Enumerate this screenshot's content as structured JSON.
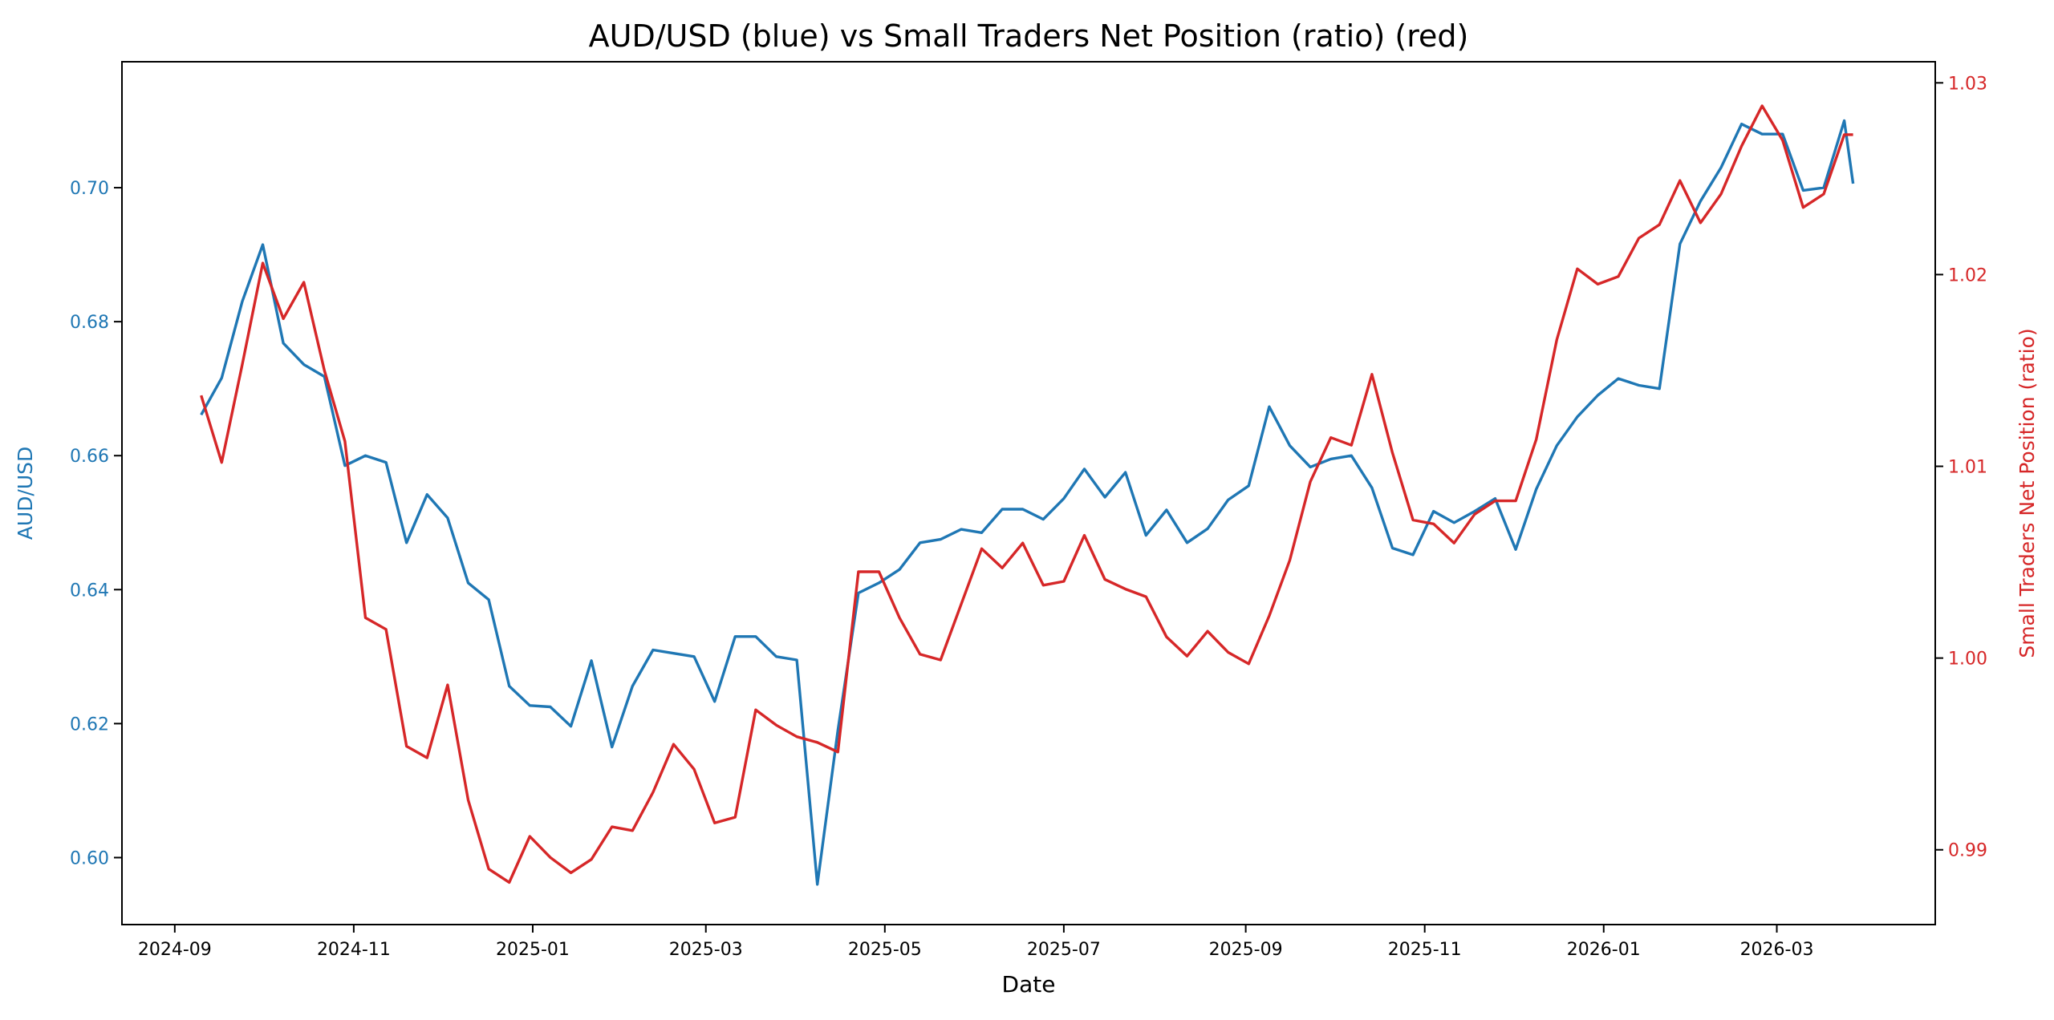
{
  "chart_data": {
    "type": "line",
    "title": "AUD/USD (blue) vs Small Traders Net Position (ratio) (red)",
    "xlabel": "Date",
    "ylabel_left": "AUD/USD",
    "ylabel_right": "Small Traders Net Position (ratio)",
    "xlim": [
      "2024-08-14",
      "2026-04-24"
    ],
    "ylim_left": [
      0.59,
      0.7188
    ],
    "ylim_right": [
      0.9861,
      1.0311
    ],
    "grid": false,
    "legend": "none",
    "x_ticks": [
      "2024-09",
      "2024-11",
      "2025-01",
      "2025-03",
      "2025-05",
      "2025-07",
      "2025-09",
      "2025-11",
      "2026-01",
      "2026-03"
    ],
    "y_ticks_left": [
      "0.60",
      "0.62",
      "0.64",
      "0.66",
      "0.68",
      "0.70"
    ],
    "y_ticks_right": [
      "0.99",
      "1.00",
      "1.01",
      "1.02",
      "1.03"
    ],
    "colors": {
      "left": "#1f77b4",
      "right": "#d62728"
    },
    "x": [
      "2024-09-10",
      "2024-09-17",
      "2024-09-24",
      "2024-10-01",
      "2024-10-08",
      "2024-10-15",
      "2024-10-22",
      "2024-10-29",
      "2024-11-05",
      "2024-11-12",
      "2024-11-19",
      "2024-11-26",
      "2024-12-03",
      "2024-12-10",
      "2024-12-17",
      "2024-12-24",
      "2024-12-31",
      "2025-01-07",
      "2025-01-14",
      "2025-01-21",
      "2025-01-28",
      "2025-02-04",
      "2025-02-11",
      "2025-02-18",
      "2025-02-25",
      "2025-03-04",
      "2025-03-11",
      "2025-03-18",
      "2025-03-25",
      "2025-04-01",
      "2025-04-08",
      "2025-04-15",
      "2025-04-22",
      "2025-04-29",
      "2025-05-06",
      "2025-05-13",
      "2025-05-20",
      "2025-05-27",
      "2025-06-03",
      "2025-06-10",
      "2025-06-17",
      "2025-06-24",
      "2025-07-01",
      "2025-07-08",
      "2025-07-15",
      "2025-07-22",
      "2025-07-29",
      "2025-08-05",
      "2025-08-12",
      "2025-08-19",
      "2025-08-26",
      "2025-09-02",
      "2025-09-09",
      "2025-09-16",
      "2025-09-23",
      "2025-09-30",
      "2025-10-07",
      "2025-10-14",
      "2025-10-21",
      "2025-10-28",
      "2025-11-04",
      "2025-11-11",
      "2025-11-18",
      "2025-11-25",
      "2025-12-02",
      "2025-12-09",
      "2025-12-16",
      "2025-12-23",
      "2025-12-30",
      "2026-01-06",
      "2026-01-13",
      "2026-01-20",
      "2026-01-27",
      "2026-02-03",
      "2026-02-10",
      "2026-02-17",
      "2026-02-24",
      "2026-03-03",
      "2026-03-10",
      "2026-03-17",
      "2026-03-24",
      "2026-03-27"
    ],
    "series": [
      {
        "axis": "left",
        "values": [
          0.6661,
          0.6716,
          0.683,
          0.6915,
          0.6768,
          0.6736,
          0.6718,
          0.6585,
          0.66,
          0.659,
          0.647,
          0.6542,
          0.6507,
          0.641,
          0.6385,
          0.6256,
          0.6227,
          0.6225,
          0.6196,
          0.6294,
          0.6165,
          0.6256,
          0.631,
          0.6305,
          0.63,
          0.6233,
          0.633,
          0.633,
          0.63,
          0.6295,
          0.596,
          0.619,
          0.6395,
          0.641,
          0.643,
          0.647,
          0.6475,
          0.649,
          0.6485,
          0.652,
          0.652,
          0.6505,
          0.6536,
          0.658,
          0.6538,
          0.6575,
          0.6481,
          0.6519,
          0.647,
          0.6491,
          0.6534,
          0.6555,
          0.6673,
          0.6615,
          0.6583,
          0.6595,
          0.66,
          0.6552,
          0.6462,
          0.6452,
          0.6517,
          0.65,
          0.6517,
          0.6536,
          0.646,
          0.655,
          0.6615,
          0.6658,
          0.669,
          0.6715,
          0.6705,
          0.67,
          0.6916,
          0.698,
          0.703,
          0.7095,
          0.708,
          0.708,
          0.6996,
          0.7,
          0.71,
          0.7006
        ]
      },
      {
        "axis": "right",
        "values": [
          1.0137,
          1.0102,
          1.0153,
          1.0206,
          1.0177,
          1.0196,
          1.015,
          1.0113,
          1.0021,
          1.0015,
          0.9954,
          0.9948,
          0.9986,
          0.9926,
          0.989,
          0.9883,
          0.9907,
          0.9896,
          0.9888,
          0.9895,
          0.9912,
          0.991,
          0.993,
          0.9955,
          0.9942,
          0.9914,
          0.9917,
          0.9973,
          0.9965,
          0.9959,
          0.9956,
          0.9951,
          1.0045,
          1.0045,
          1.0021,
          1.0002,
          0.9999,
          1.0028,
          1.0057,
          1.0047,
          1.006,
          1.0038,
          1.004,
          1.0064,
          1.0041,
          1.0036,
          1.0032,
          1.0011,
          1.0001,
          1.0014,
          1.0003,
          0.9997,
          1.0022,
          1.0051,
          1.0092,
          1.0115,
          1.0111,
          1.0148,
          1.0107,
          1.0072,
          1.007,
          1.006,
          1.0075,
          1.0082,
          1.0082,
          1.0114,
          1.0166,
          1.0203,
          1.0195,
          1.0199,
          1.0219,
          1.0226,
          1.0249,
          1.0227,
          1.0242,
          1.0267,
          1.0288,
          1.027,
          1.0235,
          1.0242,
          1.0273,
          1.0273
        ]
      }
    ]
  }
}
